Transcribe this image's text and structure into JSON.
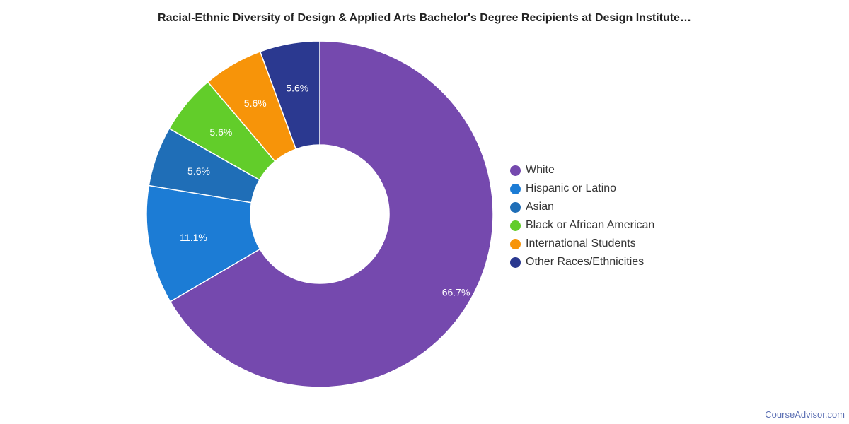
{
  "chart_data": {
    "type": "pie",
    "title": "Racial-Ethnic Diversity of Design & Applied Arts Bachelor's Degree Recipients at Design Institute…",
    "donut": true,
    "legend_position": "right",
    "slices": [
      {
        "name": "White",
        "value": 66.7,
        "label": "66.7%",
        "color": "#7549ae"
      },
      {
        "name": "Hispanic or Latino",
        "value": 11.1,
        "label": "11.1%",
        "color": "#1c7cd5"
      },
      {
        "name": "Asian",
        "value": 5.6,
        "label": "5.6%",
        "color": "#1f6eb7"
      },
      {
        "name": "Black or African American",
        "value": 5.6,
        "label": "5.6%",
        "color": "#62cd2a"
      },
      {
        "name": "International Students",
        "value": 5.6,
        "label": "5.6%",
        "color": "#f79409"
      },
      {
        "name": "Other Races/Ethnicities",
        "value": 5.6,
        "label": "5.6%",
        "color": "#2b3990"
      }
    ]
  },
  "footer": {
    "credit": "CourseAdvisor.com"
  }
}
